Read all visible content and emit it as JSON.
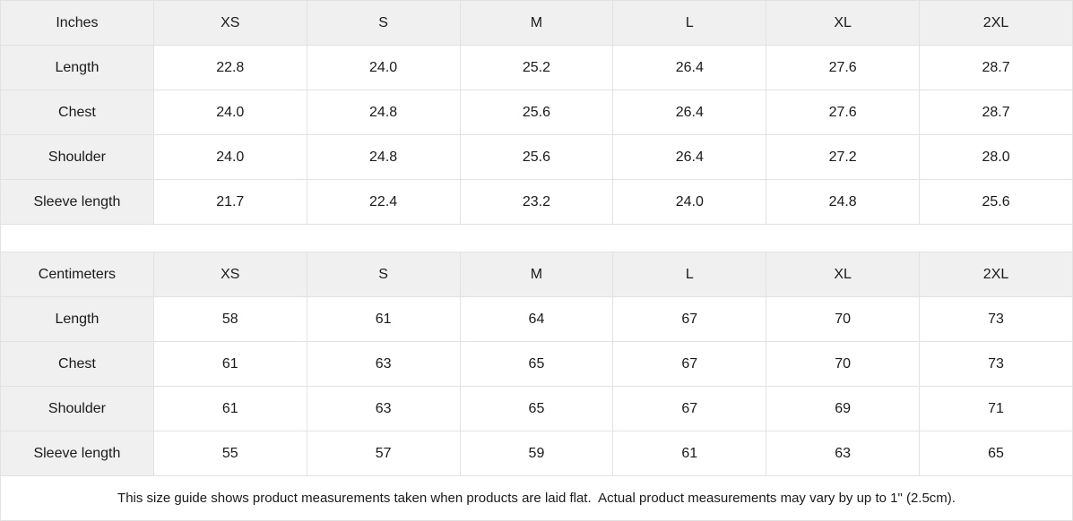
{
  "colors": {
    "header_background": "#f0f0f1",
    "border": "#e2e2e2",
    "text": "#1a1a1a",
    "background": "#ffffff"
  },
  "tables": [
    {
      "unit_label": "Inches",
      "sizes": [
        "XS",
        "S",
        "M",
        "L",
        "XL",
        "2XL"
      ],
      "rows": [
        {
          "label": "Length",
          "values": [
            "22.8",
            "24.0",
            "25.2",
            "26.4",
            "27.6",
            "28.7"
          ]
        },
        {
          "label": "Chest",
          "values": [
            "24.0",
            "24.8",
            "25.6",
            "26.4",
            "27.6",
            "28.7"
          ]
        },
        {
          "label": "Shoulder",
          "values": [
            "24.0",
            "24.8",
            "25.6",
            "26.4",
            "27.2",
            "28.0"
          ]
        },
        {
          "label": "Sleeve length",
          "values": [
            "21.7",
            "22.4",
            "23.2",
            "24.0",
            "24.8",
            "25.6"
          ]
        }
      ]
    },
    {
      "unit_label": "Centimeters",
      "sizes": [
        "XS",
        "S",
        "M",
        "L",
        "XL",
        "2XL"
      ],
      "rows": [
        {
          "label": "Length",
          "values": [
            "58",
            "61",
            "64",
            "67",
            "70",
            "73"
          ]
        },
        {
          "label": "Chest",
          "values": [
            "61",
            "63",
            "65",
            "67",
            "70",
            "73"
          ]
        },
        {
          "label": "Shoulder",
          "values": [
            "61",
            "63",
            "65",
            "67",
            "69",
            "71"
          ]
        },
        {
          "label": "Sleeve length",
          "values": [
            "55",
            "57",
            "59",
            "61",
            "63",
            "65"
          ]
        }
      ]
    }
  ],
  "footer_note": "This size guide shows product measurements taken when products are laid flat.  Actual product measurements may vary by up to 1\" (2.5cm)."
}
